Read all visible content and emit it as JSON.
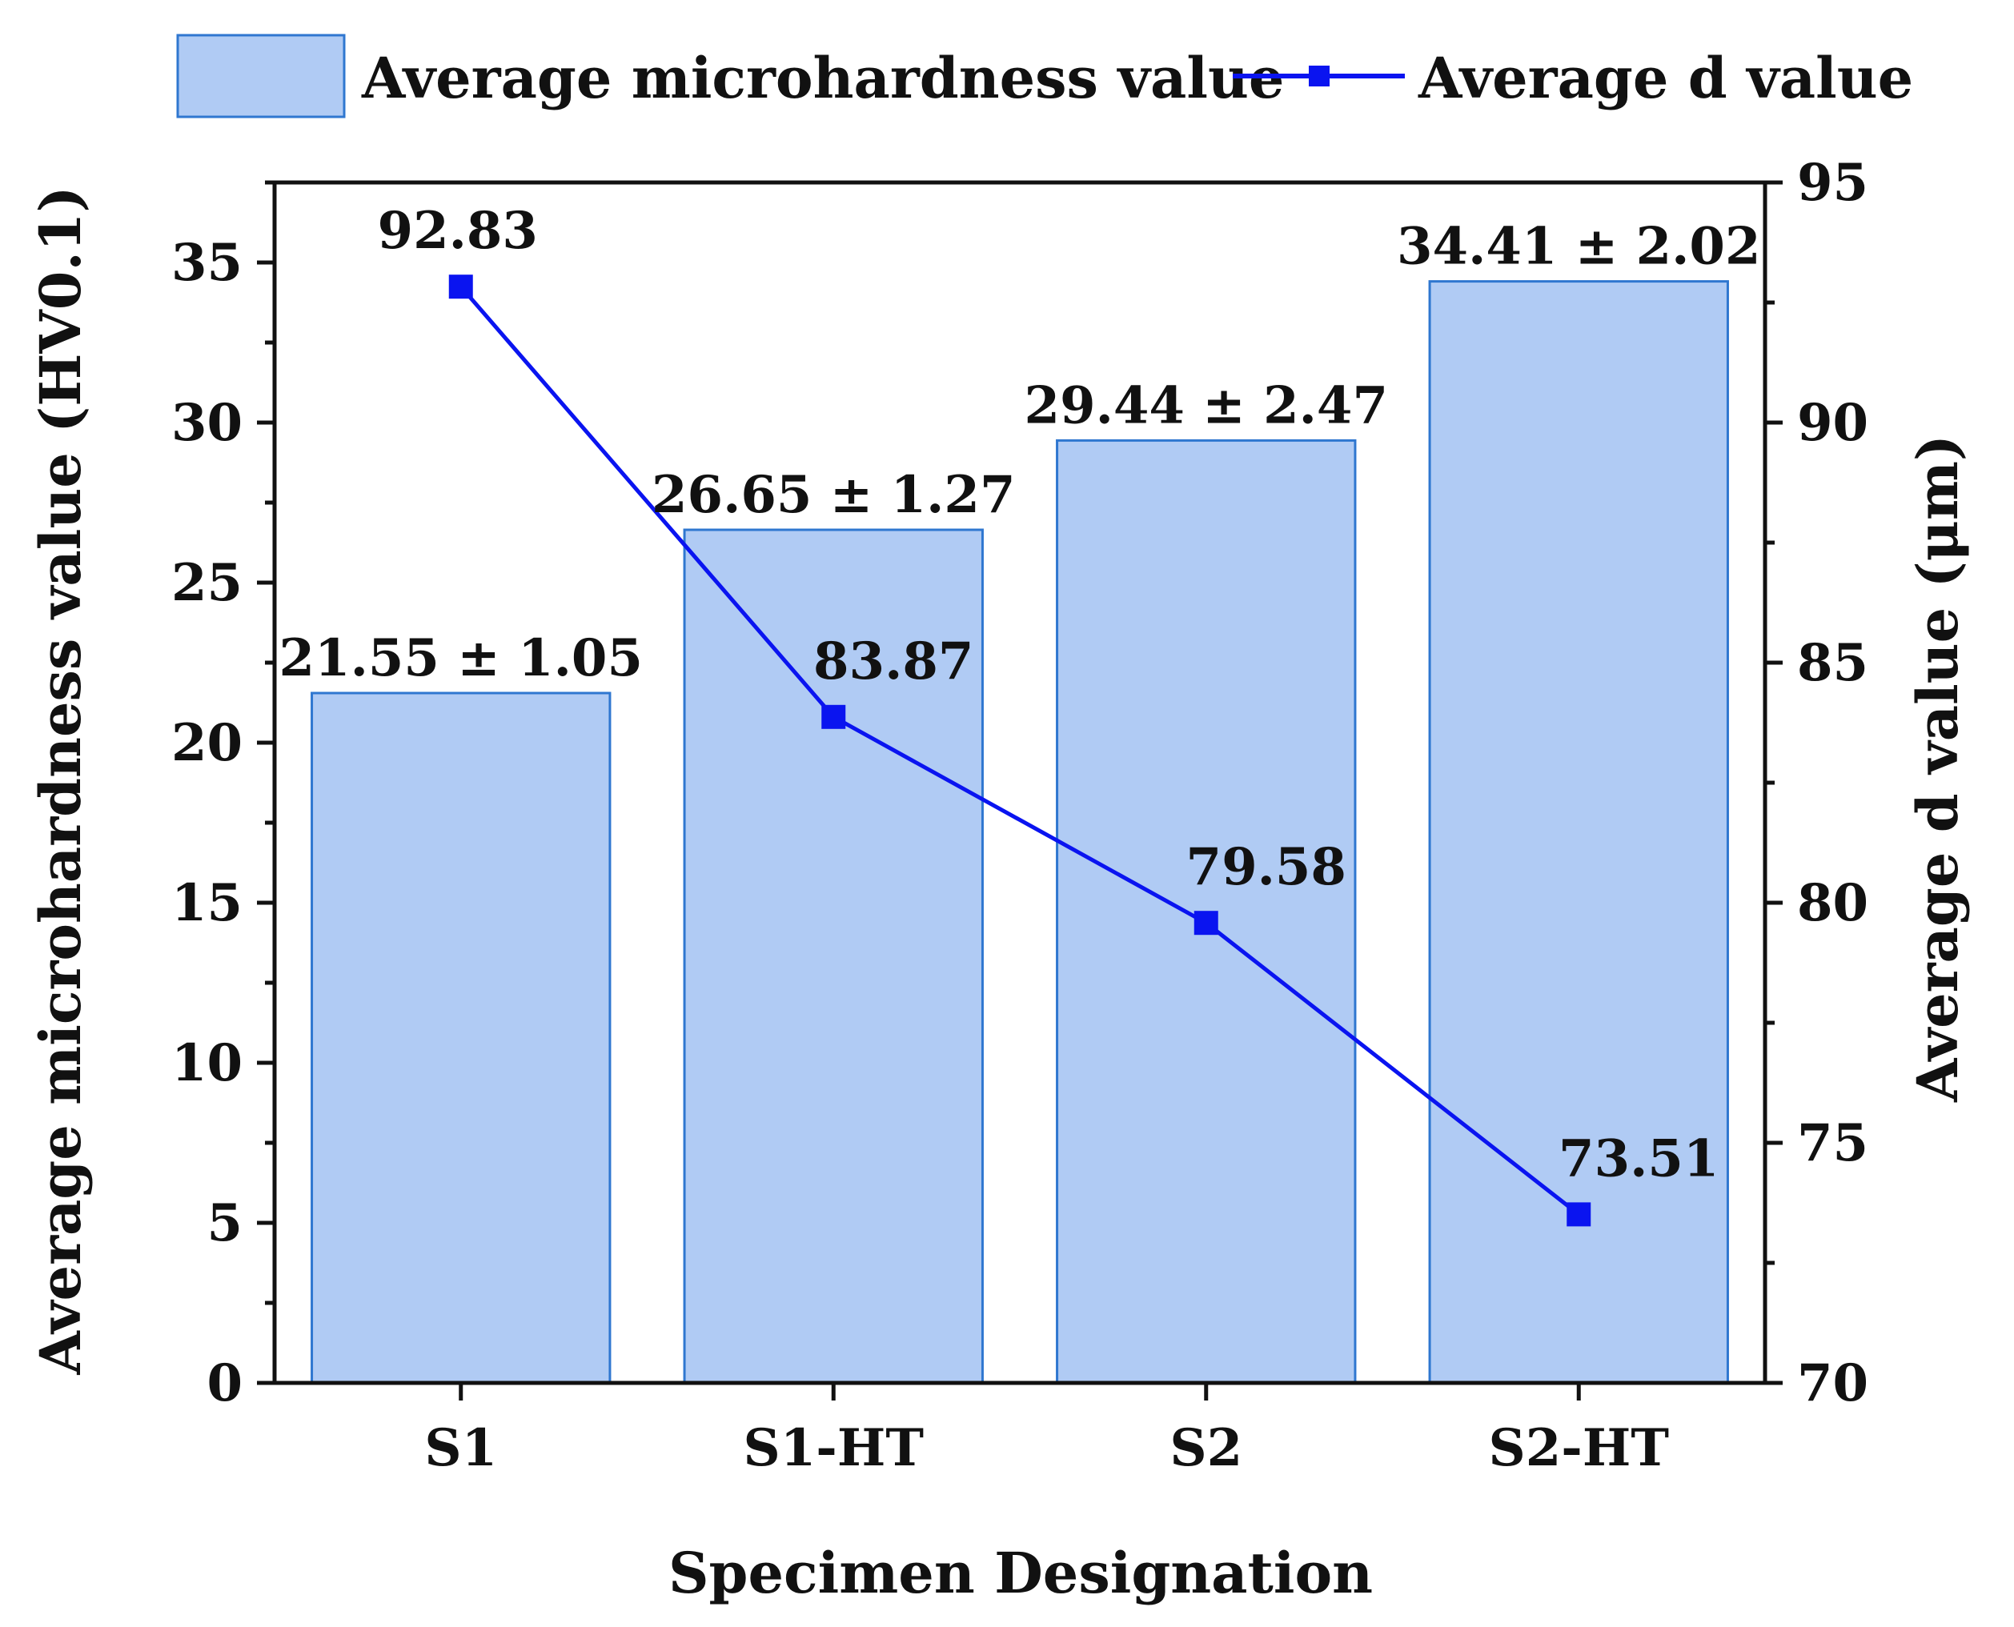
{
  "chart_data": {
    "type": "bar+line",
    "categories": [
      "S1",
      "S1-HT",
      "S2",
      "S2-HT"
    ],
    "xlabel": "Specimen Designation",
    "y_left": {
      "label": "Average microhardness value (HV0.1)",
      "lim": [
        0,
        37.5
      ],
      "ticks": [
        0,
        5,
        10,
        15,
        20,
        25,
        30,
        35
      ]
    },
    "y_right": {
      "label": "Average d value (μm)",
      "lim": [
        70,
        95
      ],
      "ticks": [
        70,
        75,
        80,
        85,
        90,
        95
      ]
    },
    "series": [
      {
        "name": "Average microhardness value",
        "kind": "bar",
        "axis": "left",
        "values": [
          21.55,
          26.65,
          29.44,
          34.41
        ],
        "labels": [
          "21.55 ± 1.05",
          "26.65 ± 1.27",
          "29.44 ± 2.47",
          "34.41 ± 2.02"
        ],
        "color": "#b0cbf4",
        "edge_color": "#2f77d0"
      },
      {
        "name": "Average d value",
        "kind": "line",
        "axis": "right",
        "values": [
          92.83,
          83.87,
          79.58,
          73.51
        ],
        "labels": [
          "92.83",
          "83.87",
          "79.58",
          "73.51"
        ],
        "color": "#0a14f0",
        "marker": "square"
      }
    ],
    "legend_position": "top"
  }
}
